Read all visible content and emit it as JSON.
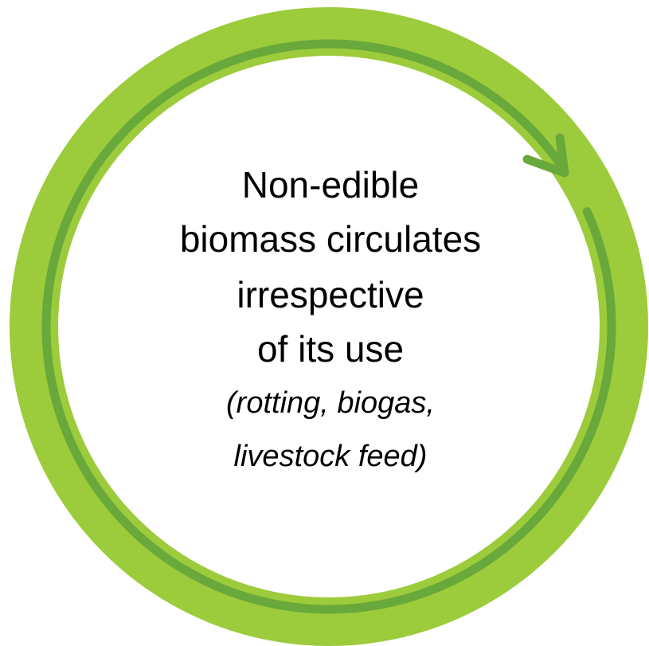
{
  "text_lines": [
    "Non-edible",
    "biomass circulates",
    "irrespective",
    "of its use"
  ],
  "note_lines": [
    "(rotting, biogas,",
    "livestock feed)"
  ]
}
